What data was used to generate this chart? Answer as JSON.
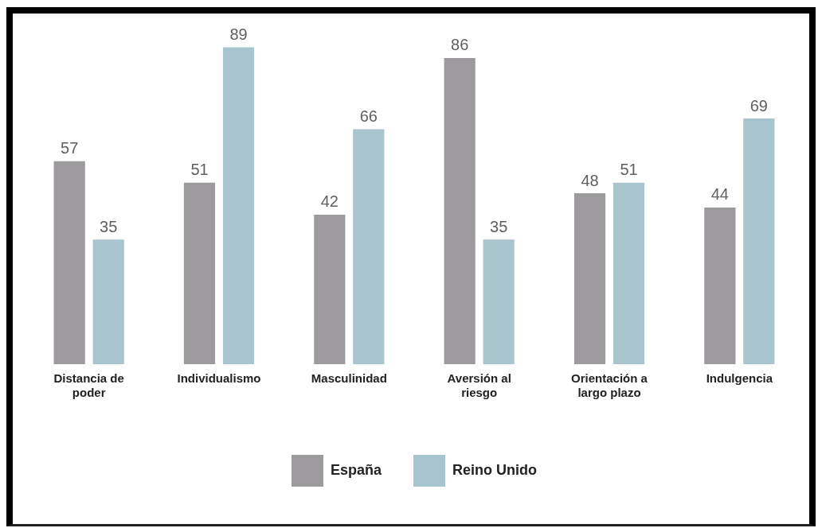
{
  "chart_data": {
    "type": "bar",
    "categories": [
      "Distancia de poder",
      "Individualismo",
      "Masculinidad",
      "Aversión al riesgo",
      "Orientación a largo plazo",
      "Indulgencia"
    ],
    "series": [
      {
        "name": "España",
        "color": "#9c9a9c",
        "values": [
          57,
          51,
          42,
          86,
          48,
          44
        ]
      },
      {
        "name": "Reino Unido",
        "color": "#a8c4cc",
        "values": [
          35,
          89,
          66,
          35,
          51,
          69
        ]
      }
    ],
    "data_labels": true,
    "legend": "bottom",
    "tick_labels": "x"
  }
}
